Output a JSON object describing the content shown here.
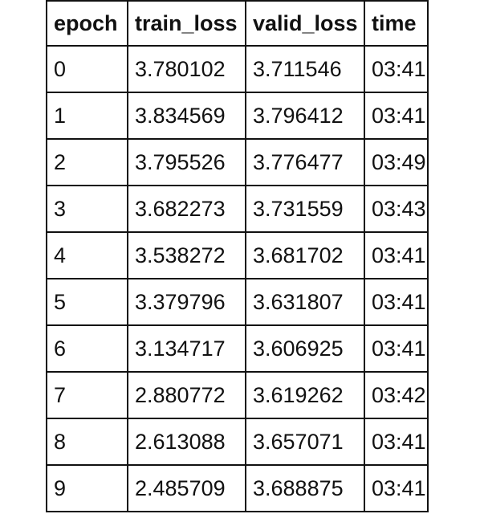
{
  "table": {
    "columns": [
      "epoch",
      "train_loss",
      "valid_loss",
      "time"
    ],
    "rows": [
      [
        "0",
        "3.780102",
        "3.711546",
        "03:41"
      ],
      [
        "1",
        "3.834569",
        "3.796412",
        "03:41"
      ],
      [
        "2",
        "3.795526",
        "3.776477",
        "03:49"
      ],
      [
        "3",
        "3.682273",
        "3.731559",
        "03:43"
      ],
      [
        "4",
        "3.538272",
        "3.681702",
        "03:41"
      ],
      [
        "5",
        "3.379796",
        "3.631807",
        "03:41"
      ],
      [
        "6",
        "3.134717",
        "3.606925",
        "03:41"
      ],
      [
        "7",
        "2.880772",
        "3.619262",
        "03:42"
      ],
      [
        "8",
        "2.613088",
        "3.657071",
        "03:41"
      ],
      [
        "9",
        "2.485709",
        "3.688875",
        "03:41"
      ]
    ]
  }
}
